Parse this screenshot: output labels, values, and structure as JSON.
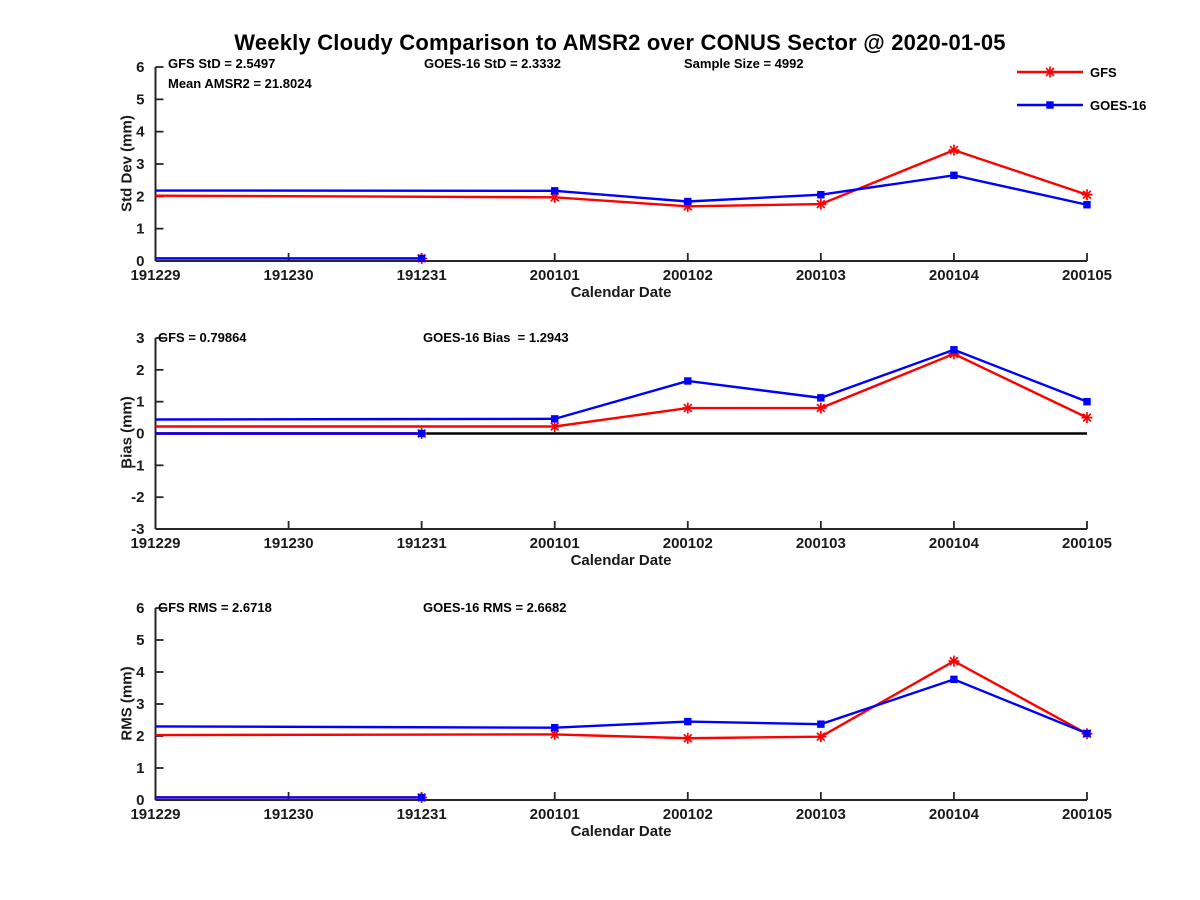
{
  "title": "Weekly Cloudy Comparison to AMSR2 over CONUS Sector @ 2020-01-05",
  "colors": {
    "gfs": "#ff0000",
    "goes16": "#0000ff",
    "axis": "#262626",
    "tick_text": "#1a1a1a",
    "zero": "#000000",
    "background": "#ffffff"
  },
  "legend": {
    "items": [
      {
        "label": "GFS",
        "color_key": "gfs",
        "marker": "asterisk"
      },
      {
        "label": "GOES-16",
        "color_key": "goes16",
        "marker": "square"
      }
    ]
  },
  "chart_data": [
    {
      "type": "line",
      "id": "std-dev",
      "ylabel": "Std Dev (mm)",
      "xlabel": "Calendar Date",
      "ylim": [
        0,
        6
      ],
      "yticks": [
        0,
        1,
        2,
        3,
        4,
        5,
        6
      ],
      "x_tick_labels": [
        "191229",
        "191230",
        "191231",
        "200101",
        "200102",
        "200103",
        "200104",
        "200105"
      ],
      "grid": false,
      "zero_line": false,
      "annotations": [
        {
          "text": "GFS StD = 2.5497"
        },
        {
          "text": "Mean AMSR2 = 21.8024"
        },
        {
          "text": "GOES-16 StD = 2.3332"
        },
        {
          "text": "Sample Size = 4992"
        }
      ],
      "series": [
        {
          "name": "GFS",
          "color_key": "gfs",
          "marker": "asterisk",
          "x": [
            "191229",
            "200101",
            "200102",
            "200103",
            "200104",
            "200105"
          ],
          "y": [
            2.02,
            1.97,
            1.69,
            1.76,
            3.43,
            2.05
          ],
          "has_marker": [
            false,
            true,
            true,
            true,
            true,
            true
          ]
        },
        {
          "name": "GOES-16",
          "color_key": "goes16",
          "marker": "square",
          "x": [
            "191229",
            "200101",
            "200102",
            "200103",
            "200104",
            "200105"
          ],
          "y": [
            2.18,
            2.17,
            1.84,
            2.05,
            2.65,
            1.74
          ],
          "has_marker": [
            false,
            true,
            true,
            true,
            true,
            true
          ]
        },
        {
          "name": "GFS baseline",
          "color_key": "gfs",
          "marker": "asterisk",
          "x": [
            "191229",
            "191231"
          ],
          "y": [
            0.08,
            0.08
          ],
          "has_marker": [
            false,
            true
          ]
        },
        {
          "name": "GOES-16 baseline",
          "color_key": "goes16",
          "marker": "square",
          "x": [
            "191229",
            "191231"
          ],
          "y": [
            0.08,
            0.08
          ],
          "has_marker": [
            false,
            true
          ]
        }
      ]
    },
    {
      "type": "line",
      "id": "bias",
      "ylabel": "Bias (mm)",
      "xlabel": "Calendar Date",
      "ylim": [
        -3,
        3
      ],
      "yticks": [
        -3,
        -2,
        -1,
        0,
        1,
        2,
        3
      ],
      "x_tick_labels": [
        "191229",
        "191230",
        "191231",
        "200101",
        "200102",
        "200103",
        "200104",
        "200105"
      ],
      "grid": false,
      "zero_line": true,
      "annotations": [
        {
          "text": "GFS = 0.79864"
        },
        {
          "text": "GOES-16 Bias  = 1.2943"
        }
      ],
      "series": [
        {
          "name": "GFS",
          "color_key": "gfs",
          "marker": "asterisk",
          "x": [
            "191229",
            "200101",
            "200102",
            "200103",
            "200104",
            "200105"
          ],
          "y": [
            0.22,
            0.22,
            0.8,
            0.8,
            2.5,
            0.5
          ],
          "has_marker": [
            false,
            true,
            true,
            true,
            true,
            true
          ]
        },
        {
          "name": "GOES-16",
          "color_key": "goes16",
          "marker": "square",
          "x": [
            "191229",
            "200101",
            "200102",
            "200103",
            "200104",
            "200105"
          ],
          "y": [
            0.44,
            0.46,
            1.65,
            1.12,
            2.63,
            1.0
          ],
          "has_marker": [
            false,
            true,
            true,
            true,
            true,
            true
          ]
        },
        {
          "name": "GFS baseline",
          "color_key": "gfs",
          "marker": "asterisk",
          "x": [
            "191229",
            "191231"
          ],
          "y": [
            0.0,
            0.0
          ],
          "has_marker": [
            false,
            true
          ]
        },
        {
          "name": "GOES-16 baseline",
          "color_key": "goes16",
          "marker": "square",
          "x": [
            "191229",
            "191231"
          ],
          "y": [
            0.0,
            0.0
          ],
          "has_marker": [
            false,
            true
          ]
        }
      ]
    },
    {
      "type": "line",
      "id": "rms",
      "ylabel": "RMS (mm)",
      "xlabel": "Calendar Date",
      "ylim": [
        0,
        6
      ],
      "yticks": [
        0,
        1,
        2,
        3,
        4,
        5,
        6
      ],
      "x_tick_labels": [
        "191229",
        "191230",
        "191231",
        "200101",
        "200102",
        "200103",
        "200104",
        "200105"
      ],
      "grid": false,
      "zero_line": false,
      "annotations": [
        {
          "text": "GFS RMS = 2.6718"
        },
        {
          "text": "GOES-16 RMS = 2.6682"
        }
      ],
      "series": [
        {
          "name": "GFS",
          "color_key": "gfs",
          "marker": "asterisk",
          "x": [
            "191229",
            "200101",
            "200102",
            "200103",
            "200104",
            "200105"
          ],
          "y": [
            2.03,
            2.05,
            1.93,
            1.98,
            4.34,
            2.07
          ],
          "has_marker": [
            false,
            true,
            true,
            true,
            true,
            true
          ]
        },
        {
          "name": "GOES-16",
          "color_key": "goes16",
          "marker": "square",
          "x": [
            "191229",
            "200101",
            "200102",
            "200103",
            "200104",
            "200105"
          ],
          "y": [
            2.3,
            2.26,
            2.45,
            2.37,
            3.77,
            2.08
          ],
          "has_marker": [
            false,
            true,
            true,
            true,
            true,
            true
          ]
        },
        {
          "name": "GFS baseline",
          "color_key": "gfs",
          "marker": "asterisk",
          "x": [
            "191229",
            "191231"
          ],
          "y": [
            0.08,
            0.08
          ],
          "has_marker": [
            false,
            true
          ]
        },
        {
          "name": "GOES-16 baseline",
          "color_key": "goes16",
          "marker": "square",
          "x": [
            "191229",
            "191231"
          ],
          "y": [
            0.08,
            0.08
          ],
          "has_marker": [
            false,
            true
          ]
        }
      ]
    }
  ]
}
